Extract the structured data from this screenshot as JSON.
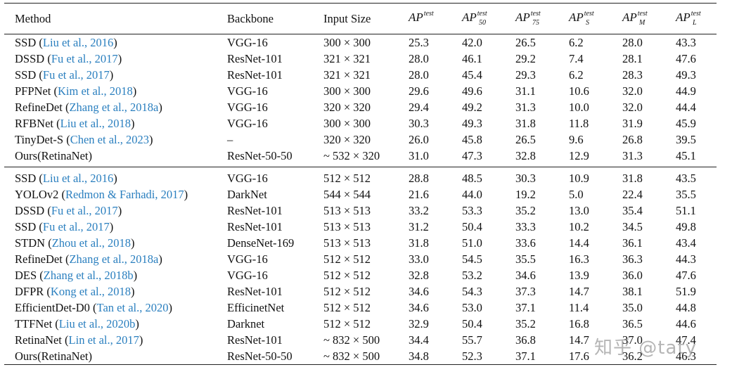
{
  "headers": [
    "Method",
    "Backbone",
    "Input Size"
  ],
  "ap_headers": [
    {
      "base": "AP",
      "sup": "test",
      "sub": ""
    },
    {
      "base": "AP",
      "sup": "test",
      "sub": "50"
    },
    {
      "base": "AP",
      "sup": "test",
      "sub": "75"
    },
    {
      "base": "AP",
      "sup": "test",
      "sub": "S"
    },
    {
      "base": "AP",
      "sup": "test",
      "sub": "M"
    },
    {
      "base": "AP",
      "sup": "test",
      "sub": "L"
    }
  ],
  "sections": [
    [
      {
        "method": "SSD",
        "cite": "Liu et al., 2016",
        "backbone": "VGG-16",
        "input": "300 × 300",
        "ap": [
          "25.3",
          "42.0",
          "26.5",
          "6.2",
          "28.0",
          "43.3"
        ],
        "bold": []
      },
      {
        "method": "DSSD",
        "cite": "Fu et al., 2017",
        "backbone": "ResNet-101",
        "input": "321 × 321",
        "ap": [
          "28.0",
          "46.1",
          "29.2",
          "7.4",
          "28.1",
          "47.6"
        ],
        "bold": []
      },
      {
        "method": "SSD",
        "cite": "Fu et al., 2017",
        "backbone": "ResNet-101",
        "input": "321 × 321",
        "ap": [
          "28.0",
          "45.4",
          "29.3",
          "6.2",
          "28.3",
          "49.3"
        ],
        "bold": [
          5
        ]
      },
      {
        "method": "PFPNet",
        "cite": "Kim et al., 2018",
        "backbone": "VGG-16",
        "input": "300 × 300",
        "ap": [
          "29.6",
          "49.6",
          "31.1",
          "10.6",
          "32.0",
          "44.9"
        ],
        "bold": [
          1,
          4
        ]
      },
      {
        "method": "RefineDet",
        "cite": "Zhang et al., 2018a",
        "backbone": "VGG-16",
        "input": "320 × 320",
        "ap": [
          "29.4",
          "49.2",
          "31.3",
          "10.0",
          "32.0",
          "44.4"
        ],
        "bold": [
          4
        ]
      },
      {
        "method": "RFBNet",
        "cite": "Liu et al., 2018",
        "backbone": "VGG-16",
        "input": "300 × 300",
        "ap": [
          "30.3",
          "49.3",
          "31.8",
          "11.8",
          "31.9",
          "45.9"
        ],
        "bold": []
      },
      {
        "method": "TinyDet-S",
        "cite": "Chen et al., 2023",
        "backbone": "–",
        "input": "320 × 320",
        "ap": [
          "26.0",
          "45.8",
          "26.5",
          "9.6",
          "26.8",
          "39.5"
        ],
        "bold": []
      },
      {
        "method": "Ours(RetinaNet)",
        "cite": "",
        "backbone": "ResNet-50-50",
        "input": "~ 532 × 320",
        "ap": [
          "31.0",
          "47.3",
          "32.8",
          "12.9",
          "31.3",
          "45.1"
        ],
        "bold": [
          0,
          2,
          3
        ]
      }
    ],
    [
      {
        "method": "SSD",
        "cite": "Liu et al., 2016",
        "backbone": "VGG-16",
        "input": "512 × 512",
        "ap": [
          "28.8",
          "48.5",
          "30.3",
          "10.9",
          "31.8",
          "43.5"
        ],
        "bold": []
      },
      {
        "method": "YOLOv2",
        "cite": "Redmon & Farhadi, 2017",
        "backbone": "DarkNet",
        "input": "544 × 544",
        "ap": [
          "21.6",
          "44.0",
          "19.2",
          "5.0",
          "22.4",
          "35.5"
        ],
        "bold": []
      },
      {
        "method": "DSSD",
        "cite": "Fu et al., 2017",
        "backbone": "ResNet-101",
        "input": "513 × 513",
        "ap": [
          "33.2",
          "53.3",
          "35.2",
          "13.0",
          "35.4",
          "51.1"
        ],
        "bold": []
      },
      {
        "method": "SSD",
        "cite": "Fu et al., 2017",
        "backbone": "ResNet-101",
        "input": "513 × 513",
        "ap": [
          "31.2",
          "50.4",
          "33.3",
          "10.2",
          "34.5",
          "49.8"
        ],
        "bold": []
      },
      {
        "method": "STDN",
        "cite": "Zhou et al., 2018",
        "backbone": "DenseNet-169",
        "input": "513 × 513",
        "ap": [
          "31.8",
          "51.0",
          "33.6",
          "14.4",
          "36.1",
          "43.4"
        ],
        "bold": []
      },
      {
        "method": "RefineDet",
        "cite": "Zhang et al., 2018a",
        "backbone": "VGG-16",
        "input": "512 × 512",
        "ap": [
          "33.0",
          "54.5",
          "35.5",
          "16.3",
          "36.3",
          "44.3"
        ],
        "bold": []
      },
      {
        "method": "DES",
        "cite": "Zhang et al., 2018b",
        "backbone": "VGG-16",
        "input": "512 × 512",
        "ap": [
          "32.8",
          "53.2",
          "34.6",
          "13.9",
          "36.0",
          "47.6"
        ],
        "bold": []
      },
      {
        "method": "DFPR",
        "cite": "Kong et al., 2018",
        "backbone": "ResNet-101",
        "input": "512 × 512",
        "ap": [
          "34.6",
          "54.3",
          "37.3",
          "14.7",
          "38.1",
          "51.9"
        ],
        "bold": [
          2,
          4,
          5
        ]
      },
      {
        "method": "EfficientDet-D0",
        "cite": "Tan et al., 2020",
        "backbone": "EfficinetNet",
        "input": "512 × 512",
        "ap": [
          "34.6",
          "53.0",
          "37.1",
          "11.4",
          "35.0",
          "44.8"
        ],
        "bold": []
      },
      {
        "method": "TTFNet",
        "cite": "Liu et al., 2020b",
        "backbone": "Darknet",
        "input": "512 × 512",
        "ap": [
          "32.9",
          "50.4",
          "35.2",
          "16.8",
          "36.5",
          "44.6"
        ],
        "bold": []
      },
      {
        "method": "RetinaNet",
        "cite": "Lin et al., 2017",
        "backbone": "ResNet-101",
        "input": "~ 832 × 500",
        "ap": [
          "34.4",
          "55.7",
          "36.8",
          "14.7",
          "37.0",
          "47.4"
        ],
        "bold": [
          1
        ]
      },
      {
        "method": "Ours(RetinaNet)",
        "cite": "",
        "backbone": "ResNet-50-50",
        "input": "~ 832 × 500",
        "ap": [
          "34.8",
          "52.3",
          "37.1",
          "17.6",
          "36.2",
          "46.3"
        ],
        "bold": [
          0,
          3
        ]
      }
    ]
  ],
  "watermark": "知乎 @taty"
}
